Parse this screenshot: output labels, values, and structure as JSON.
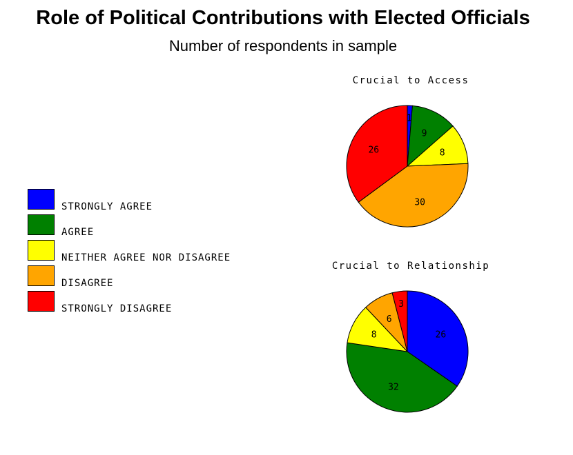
{
  "header": {
    "title": "Role of Political Contributions with Elected Officials",
    "subtitle": "Number of respondents in sample"
  },
  "colors": {
    "strongly_agree": "#0000ff",
    "agree": "#008000",
    "neither": "#ffff00",
    "disagree": "#ffa500",
    "strongly_disagree": "#ff0000"
  },
  "legend": {
    "items": [
      {
        "label": "STRONGLY AGREE",
        "color": "#0000ff"
      },
      {
        "label": "AGREE",
        "color": "#008000"
      },
      {
        "label": "NEITHER AGREE NOR DISAGREE",
        "color": "#ffff00"
      },
      {
        "label": "DISAGREE",
        "color": "#ffa500"
      },
      {
        "label": "STRONGLY DISAGREE",
        "color": "#ff0000"
      }
    ]
  },
  "chart_data": [
    {
      "type": "pie",
      "title": "Crucial to Access",
      "categories": [
        "STRONGLY AGREE",
        "AGREE",
        "NEITHER AGREE NOR DISAGREE",
        "DISAGREE",
        "STRONGLY DISAGREE"
      ],
      "values": [
        1,
        9,
        8,
        30,
        26
      ],
      "colors": [
        "#0000ff",
        "#008000",
        "#ffff00",
        "#ffa500",
        "#ff0000"
      ]
    },
    {
      "type": "pie",
      "title": "Crucial to Relationship",
      "categories": [
        "STRONGLY AGREE",
        "AGREE",
        "NEITHER AGREE NOR DISAGREE",
        "DISAGREE",
        "STRONGLY DISAGREE"
      ],
      "values": [
        26,
        32,
        8,
        6,
        3
      ],
      "colors": [
        "#0000ff",
        "#008000",
        "#ffff00",
        "#ffa500",
        "#ff0000"
      ]
    }
  ]
}
